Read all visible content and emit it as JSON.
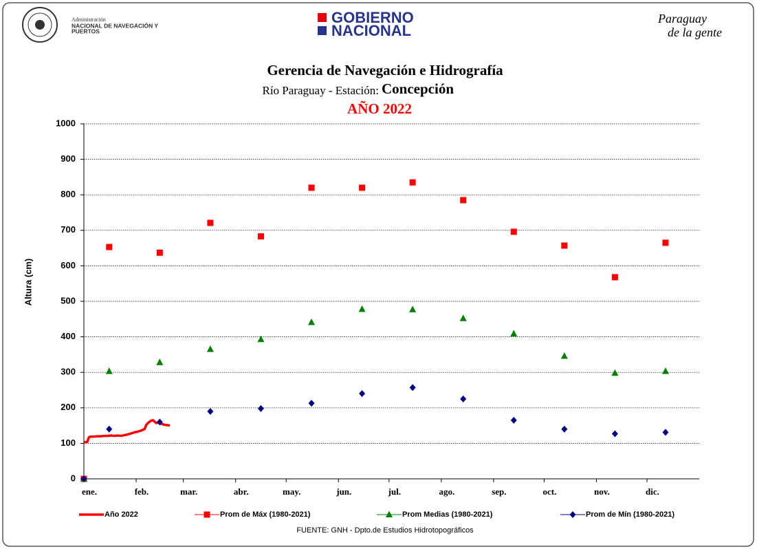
{
  "header": {
    "agency_line1": "Administración",
    "agency_line2": "NACIONAL DE NAVEGACIÓN Y",
    "agency_line3": "PUERTOS",
    "gov_line1": "GOBIERNO",
    "gov_line2": "NACIONAL",
    "slogan_line1": "Paraguay",
    "slogan_line2": "de la gente"
  },
  "chart_data": {
    "type": "line",
    "title": "Gerencia de Navegación e Hidrografía",
    "station_label": "Río Paraguay - Estación:",
    "station": "Concepción",
    "year_label": "AÑO 2022",
    "y_label": "Altura (cm)",
    "source": "FUENTE:  GNH  - Dpto.de Estudios Hidrotopográficos",
    "xlim": [
      0,
      365
    ],
    "xticks": [
      {
        "value": 0,
        "label": "ene."
      },
      {
        "value": 31,
        "label": "feb."
      },
      {
        "value": 59,
        "label": "mar."
      },
      {
        "value": 90,
        "label": "abr."
      },
      {
        "value": 120,
        "label": "may."
      },
      {
        "value": 151,
        "label": "jun."
      },
      {
        "value": 181,
        "label": "jul."
      },
      {
        "value": 212,
        "label": "ago."
      },
      {
        "value": 243,
        "label": "sep."
      },
      {
        "value": 273,
        "label": "oct."
      },
      {
        "value": 304,
        "label": "nov."
      },
      {
        "value": 334,
        "label": "dic."
      }
    ],
    "ylim": [
      0,
      1000
    ],
    "yticks": [
      0,
      100,
      200,
      300,
      400,
      500,
      600,
      700,
      800,
      900,
      1000
    ],
    "grid": true,
    "series": [
      {
        "name": "Año 2022",
        "color": "#ff0000",
        "marker": "none",
        "x": [
          0,
          2,
          3,
          4,
          6,
          8,
          10,
          12,
          14,
          16,
          18,
          20,
          22,
          24,
          26,
          28,
          30,
          32,
          34,
          36,
          37,
          38,
          39,
          40,
          41,
          42,
          43,
          44,
          45,
          46,
          48,
          50,
          51
        ],
        "values": [
          103,
          104,
          117,
          119,
          119,
          120,
          120,
          121,
          121,
          122,
          121,
          122,
          121,
          123,
          125,
          128,
          131,
          133,
          136,
          140,
          152,
          157,
          161,
          164,
          165,
          161,
          157,
          159,
          157,
          155,
          152,
          151,
          150
        ]
      },
      {
        "name": "Prom de Máx (1980-2021)",
        "color": "#ff0000",
        "marker": "square",
        "x": [
          0,
          15,
          45,
          75,
          105,
          135,
          165,
          195,
          225,
          255,
          285,
          315,
          345
        ],
        "values": [
          0,
          653,
          637,
          721,
          683,
          820,
          820,
          835,
          785,
          696,
          657,
          568,
          665
        ]
      },
      {
        "name": "Prom Medias (1980-2021)",
        "color": "#008000",
        "marker": "triangle",
        "x": [
          0,
          15,
          45,
          75,
          105,
          135,
          165,
          195,
          225,
          255,
          285,
          315,
          345
        ],
        "values": [
          0,
          303,
          328,
          365,
          393,
          441,
          478,
          477,
          452,
          409,
          346,
          298,
          303
        ]
      },
      {
        "name": "Prom de Mín   (1980-2021)",
        "color": "#000080",
        "marker": "diamond",
        "x": [
          0,
          15,
          45,
          75,
          105,
          135,
          165,
          195,
          225,
          255,
          285,
          315,
          345
        ],
        "values": [
          0,
          140,
          160,
          190,
          198,
          213,
          240,
          257,
          225,
          165,
          140,
          127,
          131
        ]
      }
    ]
  }
}
